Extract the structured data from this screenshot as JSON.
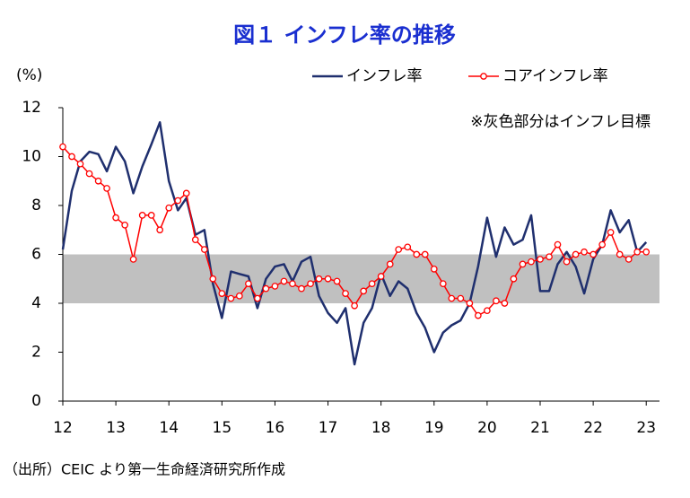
{
  "chart_data": {
    "type": "line",
    "title": "図１ インフレ率の推移",
    "y_label": "(%)",
    "annotation": "※灰色部分はインフレ目標",
    "source": "（出所）CEIC より第一生命経済研究所作成",
    "target_band": [
      4,
      6
    ],
    "band_color": "#c0c0c0",
    "x": [
      12,
      12.17,
      12.33,
      12.5,
      12.67,
      12.83,
      13,
      13.17,
      13.33,
      13.5,
      13.67,
      13.83,
      14,
      14.17,
      14.33,
      14.5,
      14.67,
      14.83,
      15,
      15.17,
      15.33,
      15.5,
      15.67,
      15.83,
      16,
      16.17,
      16.33,
      16.5,
      16.67,
      16.83,
      17,
      17.17,
      17.33,
      17.5,
      17.67,
      17.83,
      18,
      18.17,
      18.33,
      18.5,
      18.67,
      18.83,
      19,
      19.17,
      19.33,
      19.5,
      19.67,
      19.83,
      20,
      20.17,
      20.33,
      20.5,
      20.67,
      20.83,
      21,
      21.17,
      21.33,
      21.5,
      21.67,
      21.83,
      22,
      22.17,
      22.33,
      22.5,
      22.67,
      22.83,
      23
    ],
    "series": [
      {
        "name": "インフレ率",
        "color": "#1f2f6e",
        "marker": false,
        "values": [
          6.2,
          8.6,
          9.8,
          10.2,
          10.1,
          9.4,
          10.4,
          9.8,
          8.5,
          9.6,
          10.5,
          11.4,
          9.0,
          7.8,
          8.3,
          6.8,
          7.0,
          4.8,
          3.4,
          5.3,
          5.2,
          5.1,
          3.8,
          5.0,
          5.5,
          5.6,
          4.9,
          5.7,
          5.9,
          4.3,
          3.6,
          3.2,
          3.8,
          1.5,
          3.2,
          3.8,
          5.2,
          4.3,
          4.9,
          4.6,
          3.6,
          3.0,
          2.0,
          2.8,
          3.1,
          3.3,
          4.0,
          5.5,
          7.5,
          5.9,
          7.1,
          6.4,
          6.6,
          7.6,
          4.5,
          4.5,
          5.6,
          6.1,
          5.5,
          4.4,
          5.8,
          6.4,
          7.8,
          6.9,
          7.4,
          6.1,
          6.5
        ]
      },
      {
        "name": "コアインフレ率",
        "color": "#ff0000",
        "marker": true,
        "values": [
          10.4,
          10.0,
          9.7,
          9.3,
          9.0,
          8.7,
          7.5,
          7.2,
          5.8,
          7.6,
          7.6,
          7.0,
          7.9,
          8.2,
          8.5,
          6.6,
          6.2,
          5.0,
          4.4,
          4.2,
          4.3,
          4.8,
          4.2,
          4.6,
          4.7,
          4.9,
          4.8,
          4.6,
          4.8,
          5.0,
          5.0,
          4.9,
          4.4,
          3.9,
          4.5,
          4.8,
          5.1,
          5.6,
          6.2,
          6.3,
          6.0,
          6.0,
          5.4,
          4.8,
          4.2,
          4.2,
          4.0,
          3.5,
          3.7,
          4.1,
          4.0,
          5.0,
          5.6,
          5.7,
          5.8,
          5.9,
          6.4,
          5.7,
          6.0,
          6.1,
          6.0,
          6.4,
          6.9,
          6.0,
          5.8,
          6.1,
          6.1
        ]
      }
    ],
    "xlim": [
      12,
      23.25
    ],
    "xticks": [
      12,
      13,
      14,
      15,
      16,
      17,
      18,
      19,
      20,
      21,
      22,
      23
    ],
    "ylim": [
      0,
      12
    ],
    "yticks": [
      0,
      2,
      4,
      6,
      8,
      10,
      12
    ],
    "grid": false
  }
}
